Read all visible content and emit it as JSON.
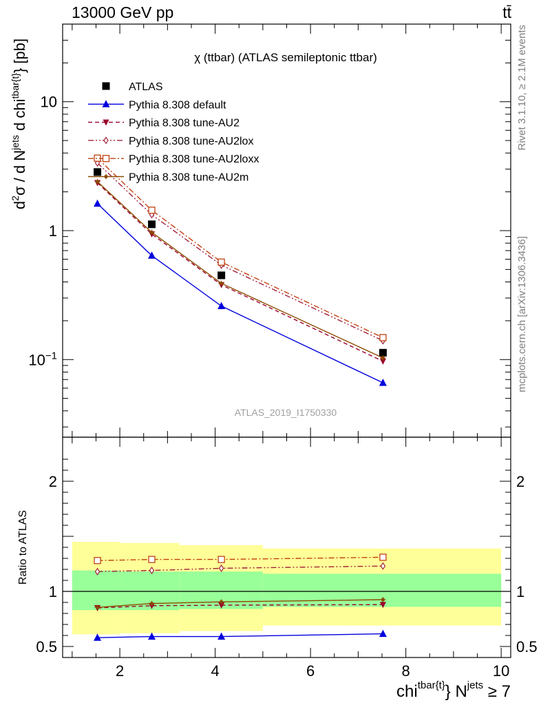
{
  "header": {
    "left": "13000 GeV pp",
    "right": "tt̄"
  },
  "side_labels": {
    "rivet": "Rivet 3.1.10, ≥ 2.1M events",
    "mcplots": "mcplots.cern.ch [arXiv:1306.3436]"
  },
  "chart_data": [
    {
      "type": "scatter",
      "panel": "main",
      "title": "χ (ttbar) (ATLAS semileptonic ttbar)",
      "watermark": "ATLAS_2019_I1750330",
      "ylabel": "d²σ / d N^jets d chi^tbar{t}} [pb]",
      "yscale": "log",
      "ylim": [
        0.025,
        40
      ],
      "xlim": [
        0.8,
        10.2
      ],
      "yticks": [
        {
          "value": 0.1,
          "label": "10⁻¹"
        },
        {
          "value": 1,
          "label": "1"
        },
        {
          "value": 10,
          "label": "10"
        }
      ],
      "legend_position": "top-left",
      "series": [
        {
          "name": "ATLAS",
          "color": "#000000",
          "marker": "square-filled",
          "line": "none",
          "x": [
            1.53,
            2.67,
            4.13,
            7.52
          ],
          "y": [
            2.85,
            1.12,
            0.45,
            0.113
          ]
        },
        {
          "name": "Pythia 8.308 default",
          "color": "#0000dd",
          "marker": "triangle-up-filled",
          "line": "solid",
          "x": [
            1.53,
            2.67,
            4.13,
            7.52
          ],
          "y": [
            1.62,
            0.64,
            0.26,
            0.066
          ]
        },
        {
          "name": "Pythia 8.308 tune-AU2",
          "color": "#99002a",
          "marker": "triangle-down-filled",
          "line": "dashed",
          "x": [
            1.53,
            2.67,
            4.13,
            7.52
          ],
          "y": [
            2.35,
            0.94,
            0.38,
            0.097
          ]
        },
        {
          "name": "Pythia 8.308 tune-AU2lox",
          "color": "#a0203a",
          "marker": "diamond-open",
          "line": "dashdotdot",
          "x": [
            1.53,
            2.67,
            4.13,
            7.52
          ],
          "y": [
            3.35,
            1.33,
            0.54,
            0.14
          ]
        },
        {
          "name": "Pythia 8.308 tune-AU2loxx",
          "color": "#c04010",
          "marker": "square-open",
          "line": "dashdot",
          "x": [
            1.53,
            2.67,
            4.13,
            7.52
          ],
          "y": [
            3.65,
            1.44,
            0.57,
            0.148
          ]
        },
        {
          "name": "Pythia 8.308 tune-AU2m",
          "color": "#8b4a00",
          "marker": "star",
          "line": "solid",
          "x": [
            1.53,
            2.67,
            4.13,
            7.52
          ],
          "y": [
            2.4,
            0.97,
            0.39,
            0.103
          ]
        }
      ]
    },
    {
      "type": "scatter",
      "panel": "ratio",
      "ylabel": "Ratio to ATLAS",
      "xlabel": "chi^tbar{t}} N^jets ≥ 7",
      "xlim": [
        0.8,
        10.2
      ],
      "ylim": [
        0.4,
        2.4
      ],
      "xticks": [
        2,
        4,
        6,
        8,
        10
      ],
      "yticks": [
        0.5,
        1,
        2
      ],
      "bands": {
        "x_edges": [
          1.0,
          2.0,
          3.25,
          5.0,
          10.0
        ],
        "inner": {
          "color": "#99ff99",
          "low": [
            0.83,
            0.83,
            0.84,
            0.86
          ],
          "high": [
            1.19,
            1.18,
            1.18,
            1.16
          ]
        },
        "outer": {
          "color": "#ffff99",
          "low": [
            0.61,
            0.62,
            0.64,
            0.69
          ],
          "high": [
            1.45,
            1.44,
            1.42,
            1.39
          ]
        }
      },
      "series": [
        {
          "name": "Pythia 8.308 default",
          "x": [
            1.53,
            2.67,
            4.13,
            7.52
          ],
          "y": [
            0.58,
            0.59,
            0.59,
            0.615
          ]
        },
        {
          "name": "Pythia 8.308 tune-AU2",
          "x": [
            1.53,
            2.67,
            4.13,
            7.52
          ],
          "y": [
            0.85,
            0.87,
            0.875,
            0.88
          ]
        },
        {
          "name": "Pythia 8.308 tune-AU2lox",
          "x": [
            1.53,
            2.67,
            4.13,
            7.52
          ],
          "y": [
            1.18,
            1.19,
            1.21,
            1.23
          ]
        },
        {
          "name": "Pythia 8.308 tune-AU2loxx",
          "x": [
            1.53,
            2.67,
            4.13,
            7.52
          ],
          "y": [
            1.28,
            1.29,
            1.29,
            1.31
          ]
        },
        {
          "name": "Pythia 8.308 tune-AU2m",
          "x": [
            1.53,
            2.67,
            4.13,
            7.52
          ],
          "y": [
            0.855,
            0.89,
            0.905,
            0.925
          ]
        }
      ]
    }
  ]
}
